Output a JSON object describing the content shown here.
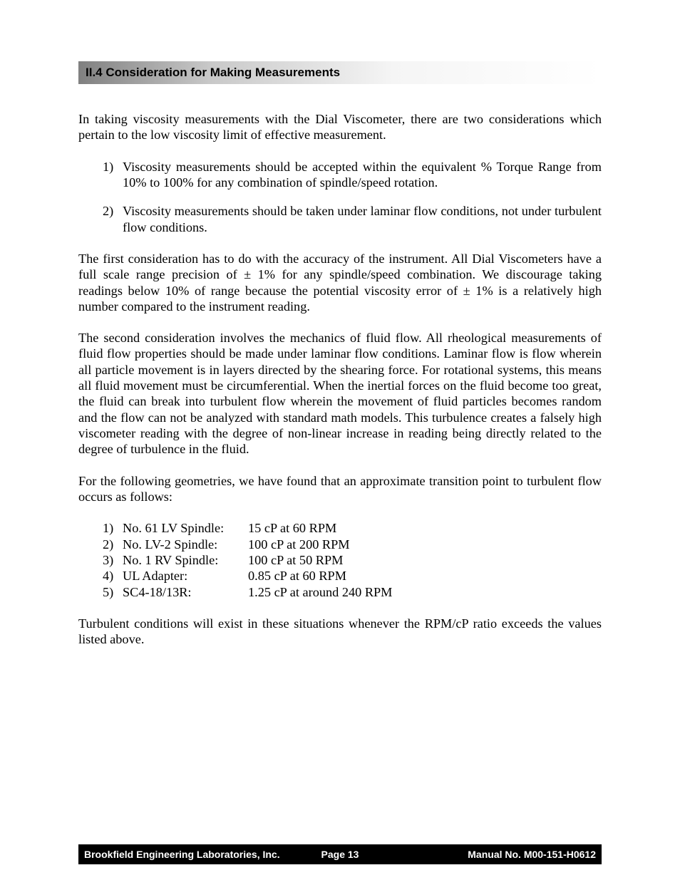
{
  "section": {
    "heading": "II.4  Consideration for Making Measurements"
  },
  "paragraphs": {
    "intro": "In taking viscosity measurements with the Dial Viscometer, there are two considerations which pertain to the low viscosity limit of effective measurement.",
    "consideration1": "Viscosity measurements should be accepted within the equivalent % Torque Range from 10% to 100% for any combination of spindle/speed rotation.",
    "consideration2": "Viscosity measurements should be taken under laminar flow conditions, not under turbulent flow conditions.",
    "first_expl": "The first consideration has to do with the accuracy of the instrument.  All Dial Viscometers have a full scale range precision of ± 1% for any spindle/speed combination.  We discourage taking readings below 10% of range because the potential viscosity error of ± 1% is a relatively high number compared to the instrument reading.",
    "second_expl": "The second consideration involves the mechanics of fluid flow.  All rheological  measurements of fluid flow properties should be made under laminar flow conditions.  Laminar flow is flow wherein all particle movement is in layers directed by the shearing force.  For rotational systems, this means all fluid movement must be circumferential.  When the inertial forces on the fluid become too great, the fluid can break into turbulent flow wherein the movement of fluid particles becomes random and the flow can not be analyzed with standard math models.  This turbulence creates a falsely high viscometer reading with the degree of non-linear increase in reading being directly related to the degree of turbulence in the fluid.",
    "transition_intro": "For the following geometries, we have found that an approximate transition point to turbulent flow occurs as follows:",
    "closing": "Turbulent conditions will exist in these situations whenever the RPM/cP ratio exceeds the values listed above."
  },
  "considerations_numbers": {
    "one": "1)",
    "two": "2)"
  },
  "spindles": [
    {
      "num": "1)",
      "label": "No. 61 LV Spindle:",
      "value": "15 cP at 60 RPM"
    },
    {
      "num": "2)",
      "label": "No. LV-2 Spindle:",
      "value": "100 cP at 200 RPM"
    },
    {
      "num": "3)",
      "label": "No. 1 RV Spindle:",
      "value": "100 cP at 50 RPM"
    },
    {
      "num": "4)",
      "label": "UL Adapter:",
      "value": "0.85 cP at 60 RPM"
    },
    {
      "num": "5)",
      "label": "SC4-18/13R:",
      "value": "1.25 cP at around 240 RPM"
    }
  ],
  "footer": {
    "left": "Brookfield Engineering Laboratories, Inc.",
    "center": "Page   13",
    "right": "Manual No. M00-151-H0612"
  }
}
